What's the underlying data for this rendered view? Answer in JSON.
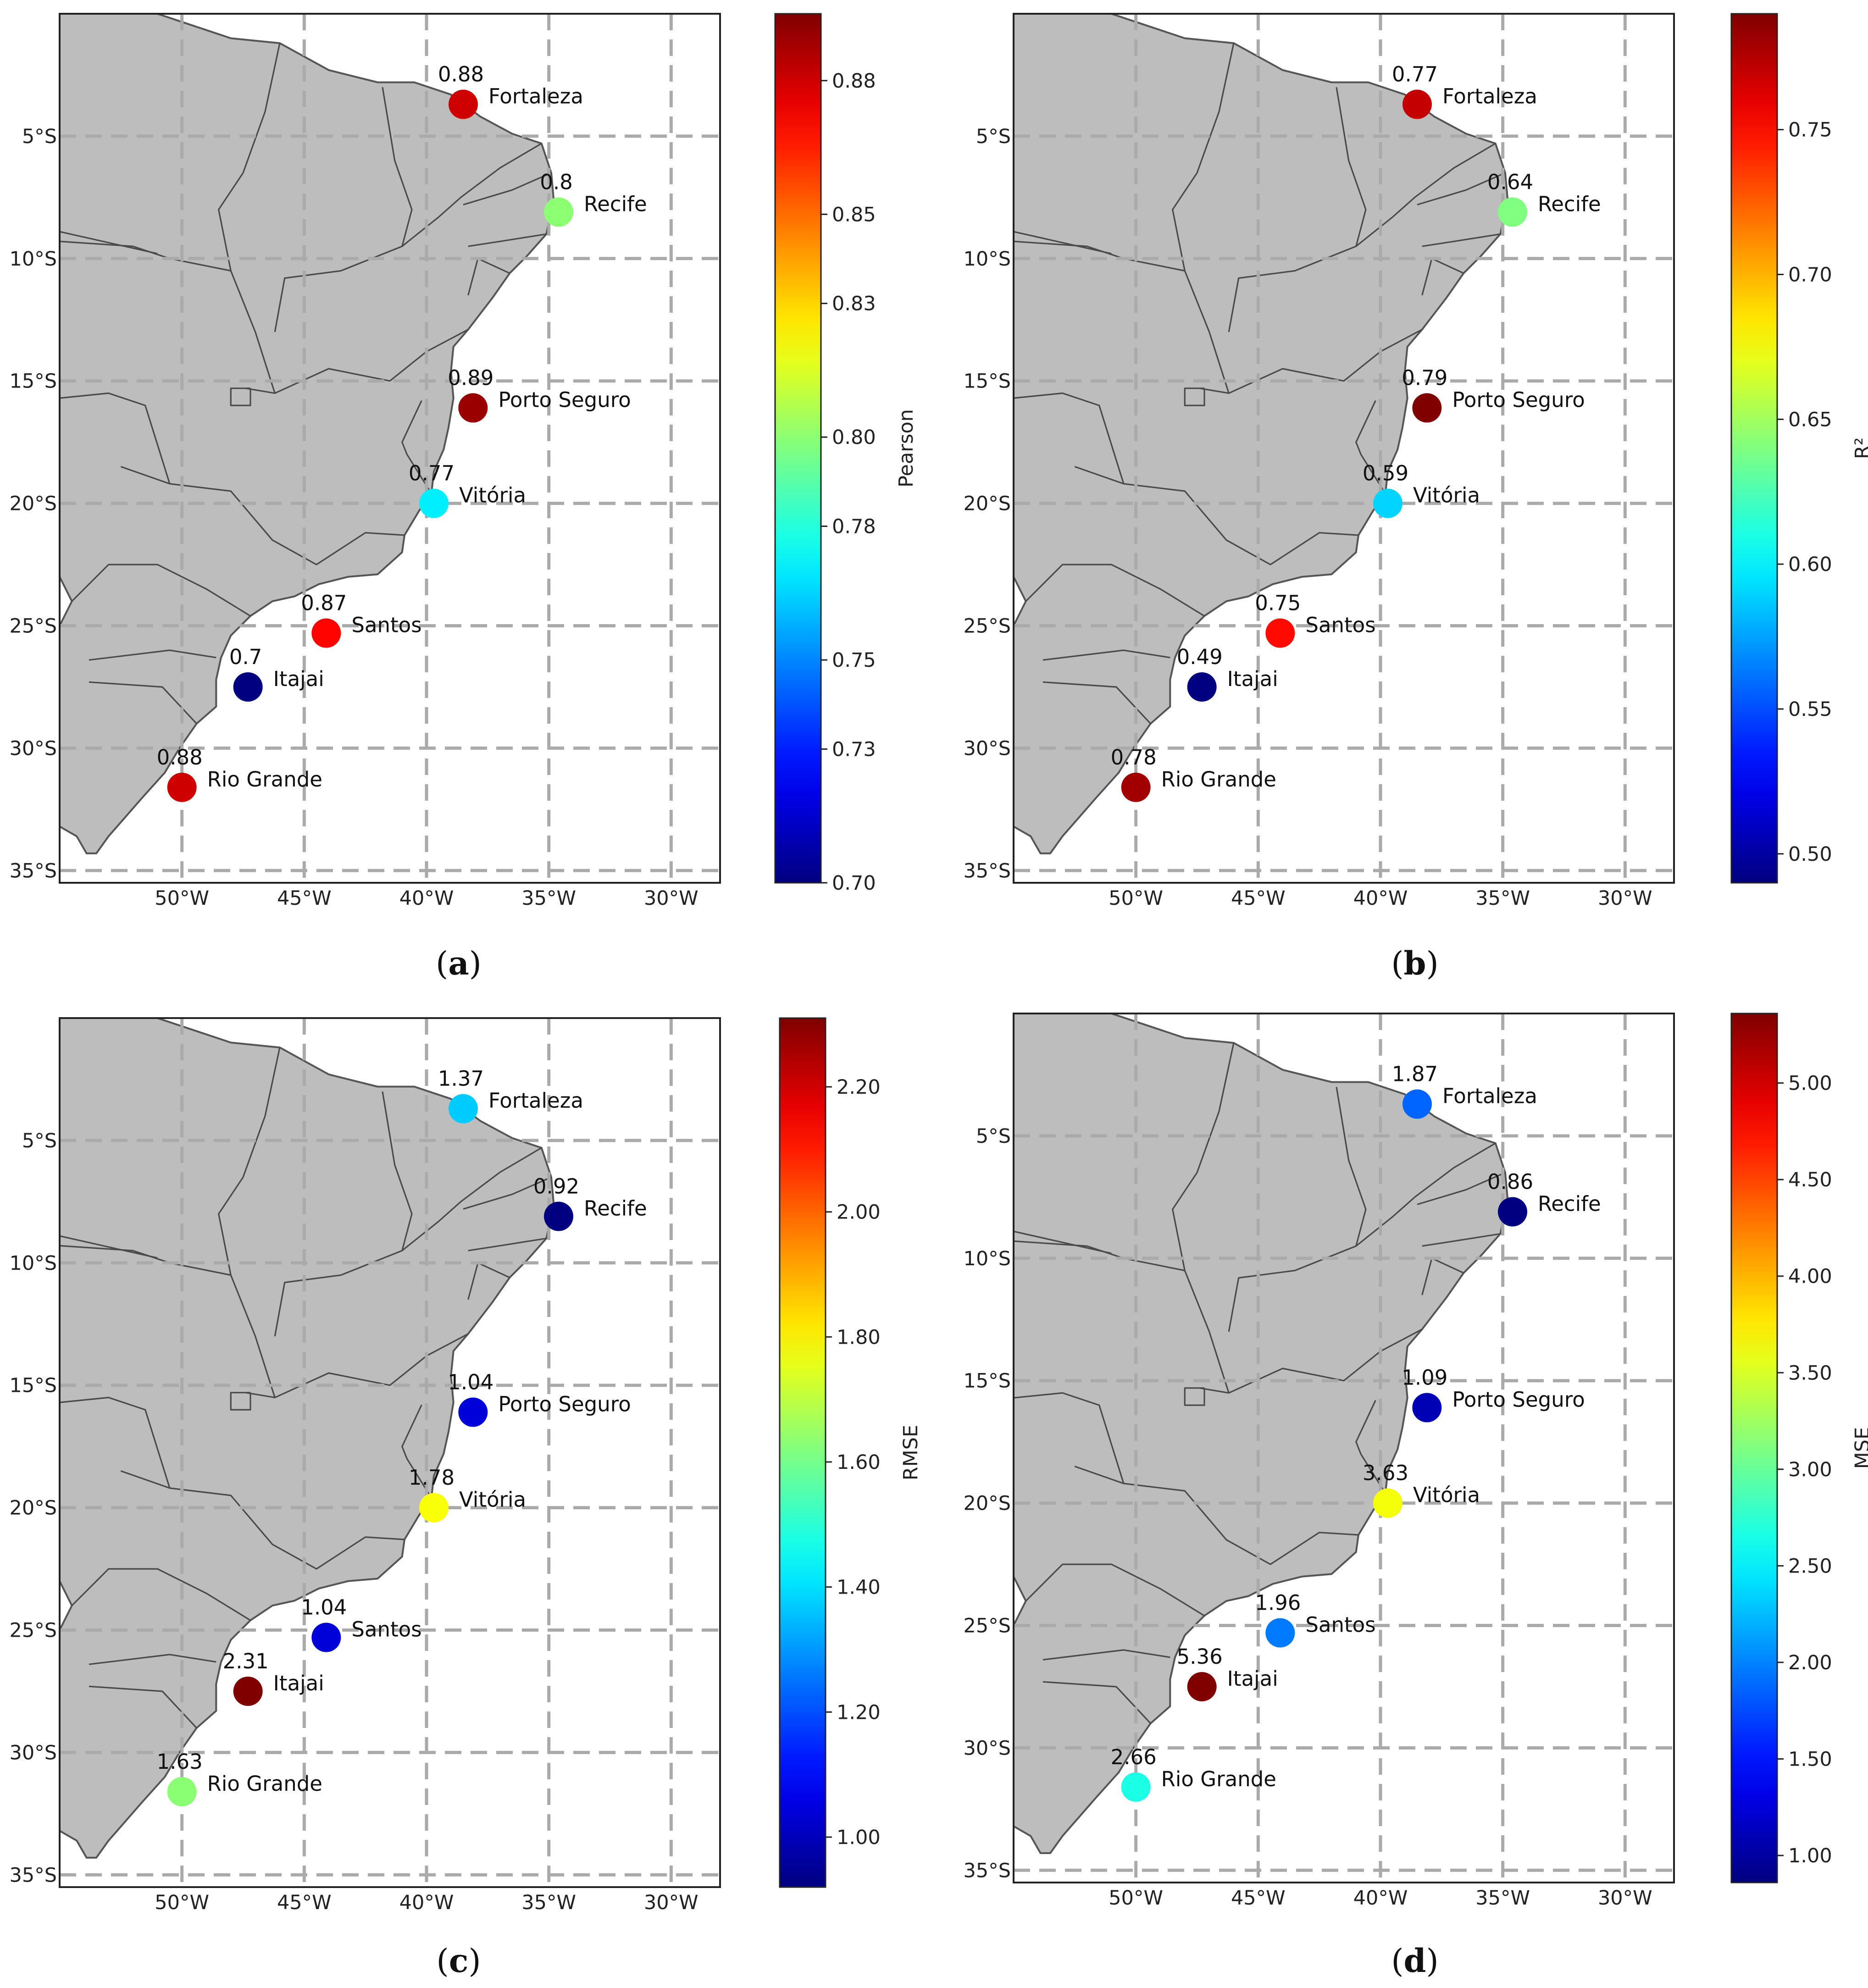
{
  "chart_data": [
    {
      "type": "scatter",
      "caption": "a",
      "colorbar_label": "Pearson",
      "colorbar_ticks": [
        "0.70",
        "0.73",
        "0.75",
        "0.78",
        "0.80",
        "0.83",
        "0.85",
        "0.88"
      ],
      "vmin": 0.7,
      "vmax": 0.895,
      "colormap": "jet",
      "stations": [
        {
          "name": "Fortaleza",
          "lon": -38.5,
          "lat": -3.7,
          "value": 0.88,
          "label": "0.88"
        },
        {
          "name": "Recife",
          "lon": -34.6,
          "lat": -8.1,
          "value": 0.8,
          "label": "0.8"
        },
        {
          "name": "Porto Seguro",
          "lon": -38.1,
          "lat": -16.1,
          "value": 0.89,
          "label": "0.89"
        },
        {
          "name": "Vitória",
          "lon": -39.7,
          "lat": -20.0,
          "value": 0.77,
          "label": "0.77"
        },
        {
          "name": "Santos",
          "lon": -44.1,
          "lat": -25.3,
          "value": 0.87,
          "label": "0.87"
        },
        {
          "name": "Itajai",
          "lon": -47.3,
          "lat": -27.5,
          "value": 0.7,
          "label": "0.7"
        },
        {
          "name": "Rio Grande",
          "lon": -50.0,
          "lat": -31.6,
          "value": 0.88,
          "label": "0.88"
        }
      ]
    },
    {
      "type": "scatter",
      "caption": "b",
      "colorbar_label": "R²",
      "colorbar_ticks": [
        "0.50",
        "0.55",
        "0.60",
        "0.65",
        "0.70",
        "0.75"
      ],
      "vmin": 0.49,
      "vmax": 0.79,
      "colormap": "jet",
      "stations": [
        {
          "name": "Fortaleza",
          "lon": -38.5,
          "lat": -3.7,
          "value": 0.77,
          "label": "0.77"
        },
        {
          "name": "Recife",
          "lon": -34.6,
          "lat": -8.1,
          "value": 0.64,
          "label": "0.64"
        },
        {
          "name": "Porto Seguro",
          "lon": -38.1,
          "lat": -16.1,
          "value": 0.79,
          "label": "0.79"
        },
        {
          "name": "Vitória",
          "lon": -39.7,
          "lat": -20.0,
          "value": 0.59,
          "label": "0.59"
        },
        {
          "name": "Santos",
          "lon": -44.1,
          "lat": -25.3,
          "value": 0.75,
          "label": "0.75"
        },
        {
          "name": "Itajai",
          "lon": -47.3,
          "lat": -27.5,
          "value": 0.49,
          "label": "0.49"
        },
        {
          "name": "Rio Grande",
          "lon": -50.0,
          "lat": -31.6,
          "value": 0.78,
          "label": "0.78"
        }
      ]
    },
    {
      "type": "scatter",
      "caption": "c",
      "colorbar_label": "RMSE",
      "colorbar_ticks": [
        "1.00",
        "1.20",
        "1.40",
        "1.60",
        "1.80",
        "2.00",
        "2.20"
      ],
      "vmin": 0.92,
      "vmax": 2.31,
      "colormap": "jet",
      "stations": [
        {
          "name": "Fortaleza",
          "lon": -38.5,
          "lat": -3.7,
          "value": 1.37,
          "label": "1.37"
        },
        {
          "name": "Recife",
          "lon": -34.6,
          "lat": -8.1,
          "value": 0.92,
          "label": "0.92"
        },
        {
          "name": "Porto Seguro",
          "lon": -38.1,
          "lat": -16.1,
          "value": 1.04,
          "label": "1.04"
        },
        {
          "name": "Vitória",
          "lon": -39.7,
          "lat": -20.0,
          "value": 1.78,
          "label": "1.78"
        },
        {
          "name": "Santos",
          "lon": -44.1,
          "lat": -25.3,
          "value": 1.04,
          "label": "1.04"
        },
        {
          "name": "Itajai",
          "lon": -47.3,
          "lat": -27.5,
          "value": 2.31,
          "label": "2.31"
        },
        {
          "name": "Rio Grande",
          "lon": -50.0,
          "lat": -31.6,
          "value": 1.63,
          "label": "1.63"
        }
      ]
    },
    {
      "type": "scatter",
      "caption": "d",
      "colorbar_label": "MSE",
      "colorbar_ticks": [
        "1.00",
        "1.50",
        "2.00",
        "2.50",
        "3.00",
        "3.50",
        "4.00",
        "4.50",
        "5.00"
      ],
      "vmin": 0.86,
      "vmax": 5.36,
      "colormap": "jet",
      "stations": [
        {
          "name": "Fortaleza",
          "lon": -38.5,
          "lat": -3.7,
          "value": 1.87,
          "label": "1.87"
        },
        {
          "name": "Recife",
          "lon": -34.6,
          "lat": -8.1,
          "value": 0.86,
          "label": "0.86"
        },
        {
          "name": "Porto Seguro",
          "lon": -38.1,
          "lat": -16.1,
          "value": 1.09,
          "label": "1.09"
        },
        {
          "name": "Vitória",
          "lon": -39.7,
          "lat": -20.0,
          "value": 3.63,
          "label": "3.63"
        },
        {
          "name": "Santos",
          "lon": -44.1,
          "lat": -25.3,
          "value": 1.96,
          "label": "1.96"
        },
        {
          "name": "Itajai",
          "lon": -47.3,
          "lat": -27.5,
          "value": 5.36,
          "label": "5.36"
        },
        {
          "name": "Rio Grande",
          "lon": -50.0,
          "lat": -31.6,
          "value": 2.66,
          "label": "2.66"
        }
      ]
    }
  ],
  "map_extent": {
    "lon_min": -55,
    "lon_max": -28,
    "lat_min": -35.5,
    "lat_max": 0
  },
  "x_ticks": [
    {
      "lon": -50,
      "label": "50°W"
    },
    {
      "lon": -45,
      "label": "45°W"
    },
    {
      "lon": -40,
      "label": "40°W"
    },
    {
      "lon": -35,
      "label": "35°W"
    },
    {
      "lon": -30,
      "label": "30°W"
    }
  ],
  "y_ticks": [
    {
      "lat": -5,
      "label": "5°S"
    },
    {
      "lat": -10,
      "label": "10°S"
    },
    {
      "lat": -15,
      "label": "15°S"
    },
    {
      "lat": -20,
      "label": "20°S"
    },
    {
      "lat": -25,
      "label": "25°S"
    },
    {
      "lat": -30,
      "label": "30°S"
    },
    {
      "lat": -35,
      "label": "35°S"
    }
  ],
  "colors": {
    "land": "#bdbdbd",
    "grid": "#aaaaaa"
  }
}
